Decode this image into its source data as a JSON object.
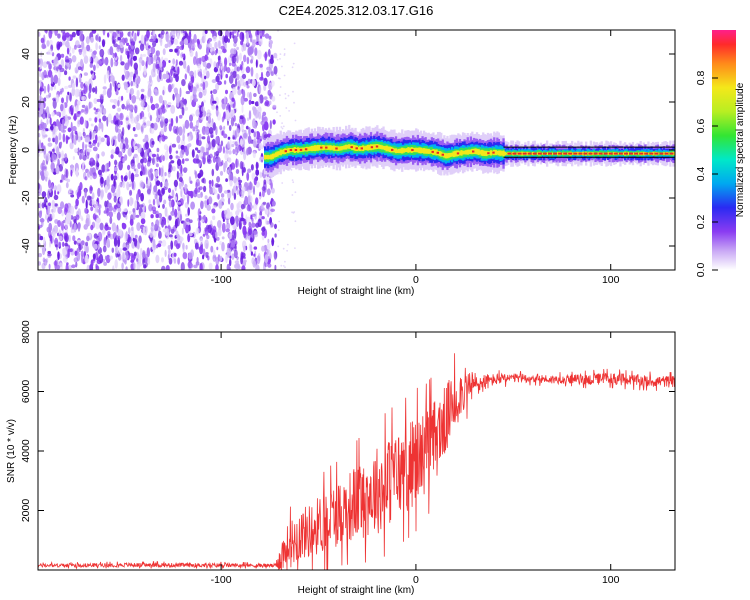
{
  "figure_title": "C2E4.2025.312.03.17.G16",
  "chart_data": [
    {
      "type": "heatmap",
      "xlabel": "Height of straight line (km)",
      "ylabel": "Frequency (Hz)",
      "xlim": [
        -194,
        133
      ],
      "ylim": [
        -50,
        50
      ],
      "xticks": [
        -100,
        0,
        100
      ],
      "xtick_labels": [
        "-100",
        "0",
        "100"
      ],
      "yticks": [
        -40,
        -20,
        0,
        20,
        40
      ],
      "ytick_labels": [
        "-40",
        "-20",
        "0",
        "20",
        "40"
      ],
      "noise_region_x": [
        -194,
        -72
      ],
      "signal_center_trace": {
        "x": [
          -75,
          -70,
          -65,
          -60,
          -55,
          -50,
          -45,
          -40,
          -35,
          -30,
          -25,
          -20,
          -15,
          -10,
          -5,
          0,
          5,
          10,
          15,
          20,
          25,
          30,
          35,
          40,
          45,
          60,
          80,
          100,
          120,
          133
        ],
        "y": [
          -3,
          -1,
          0,
          0,
          0.5,
          1,
          1,
          0.5,
          1.5,
          0.5,
          1,
          1.5,
          0.5,
          -0.5,
          0,
          0,
          -0.5,
          -1,
          -2.5,
          -1.5,
          -1,
          -0.5,
          -1.5,
          -1,
          -1.5,
          -1.5,
          -1.5,
          -1.5,
          -1.5,
          -1.5
        ]
      },
      "colorbar": {
        "label": "Normalized spectral amplitude",
        "range": [
          0,
          1
        ],
        "ticks": [
          0,
          0.2,
          0.4,
          0.6,
          0.8
        ],
        "tick_labels": [
          "0.0",
          "0.2",
          "0.4",
          "0.6",
          "0.8"
        ]
      }
    },
    {
      "type": "line",
      "xlabel": "Height of straight line (km)",
      "ylabel": "SNR (10 * v/v)",
      "xlim": [
        -194,
        133
      ],
      "ylim": [
        0,
        8000
      ],
      "xticks": [
        -100,
        0,
        100
      ],
      "xtick_labels": [
        "-100",
        "0",
        "100"
      ],
      "yticks": [
        2000,
        4000,
        6000,
        8000
      ],
      "ytick_labels": [
        "2000",
        "4000",
        "6000",
        "8000"
      ],
      "series": [
        {
          "name": "SNR",
          "color": "#ee3333",
          "x": [
            -194,
            -150,
            -100,
            -72,
            -68,
            -60,
            -55,
            -50,
            -45,
            -40,
            -35,
            -30,
            -25,
            -20,
            -15,
            -10,
            -5,
            0,
            5,
            10,
            15,
            20,
            25,
            30,
            35,
            40,
            50,
            60,
            70,
            80,
            90,
            100,
            110,
            120,
            133
          ],
          "mean": [
            150,
            170,
            160,
            150,
            600,
            1200,
            1300,
            1500,
            1700,
            1900,
            2100,
            2300,
            2500,
            2700,
            2900,
            3200,
            3400,
            3700,
            4000,
            4400,
            5000,
            5700,
            6100,
            6200,
            6300,
            6400,
            6450,
            6450,
            6400,
            6420,
            6400,
            6450,
            6380,
            6350,
            6330
          ],
          "spread": [
            60,
            70,
            70,
            60,
            700,
            900,
            900,
            1000,
            1100,
            1100,
            1200,
            1300,
            1400,
            1500,
            1500,
            1500,
            1500,
            1500,
            1400,
            1400,
            1200,
            1000,
            700,
            500,
            300,
            200,
            150,
            150,
            150,
            150,
            200,
            200,
            200,
            200,
            200
          ]
        }
      ]
    }
  ],
  "colors": {
    "axes": "#000000",
    "noise": "#7a2ef0",
    "snr_line": "#ee3333"
  }
}
